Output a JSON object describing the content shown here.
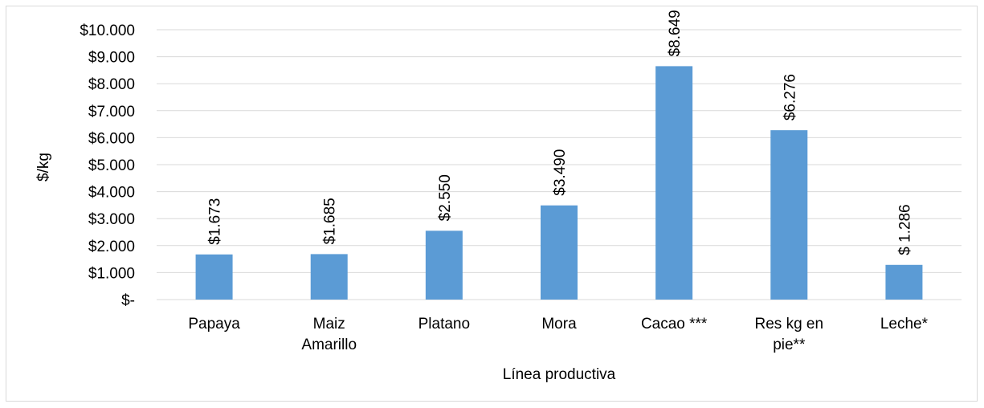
{
  "chart_data": {
    "type": "bar",
    "categories": [
      [
        "Papaya"
      ],
      [
        "Maiz",
        "Amarillo"
      ],
      [
        "Platano"
      ],
      [
        "Mora"
      ],
      [
        "Cacao ***"
      ],
      [
        "Res kg en",
        "pie**"
      ],
      [
        "Leche*"
      ]
    ],
    "values": [
      1673,
      1685,
      2550,
      3490,
      8649,
      6276,
      1286
    ],
    "data_labels": [
      "$1.673",
      "$1.685",
      "$2.550",
      "$3.490",
      "$8.649",
      "$6.276",
      "$ 1.286"
    ],
    "y_ticks": [
      0,
      1000,
      2000,
      3000,
      4000,
      5000,
      6000,
      7000,
      8000,
      9000,
      10000
    ],
    "y_tick_labels": [
      "$-",
      "$1.000",
      "$2.000",
      "$3.000",
      "$4.000",
      "$5.000",
      "$6.000",
      "$7.000",
      "$8.000",
      "$9.000",
      "$10.000"
    ],
    "ylim": [
      0,
      10000
    ],
    "xlabel": "Línea productiva",
    "ylabel": "$/kg",
    "grid": true,
    "bar_color": "#5b9bd5",
    "grid_color": "#d9d9d9"
  }
}
